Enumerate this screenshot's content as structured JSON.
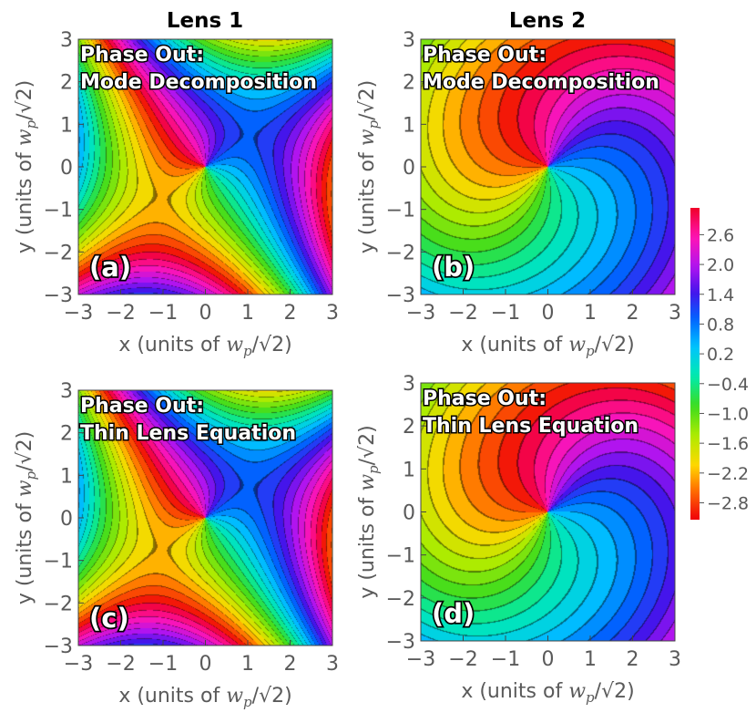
{
  "chart_data": {
    "type": "heatmap",
    "columns": [
      "Lens 1",
      "Lens 2"
    ],
    "colorbar": {
      "range": [
        -3.14,
        3.14
      ],
      "ticks": [
        "2.6",
        "2.0",
        "1.4",
        "0.8",
        "0.2",
        "−0.4",
        "−1.0",
        "−1.6",
        "−2.2",
        "−2.8"
      ],
      "tick_values": [
        2.6,
        2.0,
        1.4,
        0.8,
        0.2,
        -0.4,
        -1.0,
        -1.6,
        -2.2,
        -2.8
      ]
    },
    "panels": [
      {
        "id": "a",
        "label": "(a)",
        "lens": 1,
        "title_line1": "Phase Out:",
        "title_line2": "Mode Decomposition",
        "xlabel": "x (units of",
        "ylabel": "y (units of",
        "unit_sym": "w",
        "unit_sub": "p",
        "unit_rest": "/√2)",
        "xlim": [
          -3,
          3
        ],
        "ylim": [
          -3,
          3
        ],
        "xticks": [
          "−3",
          "−2",
          "−1",
          "0",
          "1",
          "2",
          "3"
        ],
        "yticks": [
          "3",
          "2",
          "1",
          "0",
          "−1",
          "−2",
          "−3"
        ]
      },
      {
        "id": "b",
        "label": "(b)",
        "lens": 2,
        "title_line1": "Phase Out:",
        "title_line2": "Mode Decomposition",
        "xlabel": "x (units of",
        "ylabel": "y (units of",
        "unit_sym": "w",
        "unit_sub": "p",
        "unit_rest": "/√2)",
        "xlim": [
          -3,
          3
        ],
        "ylim": [
          -3,
          3
        ],
        "xticks": [
          "−3",
          "−2",
          "−1",
          "0",
          "1",
          "2",
          "3"
        ],
        "yticks": [
          "3",
          "2",
          "1",
          "0",
          "−1",
          "−2",
          "−3"
        ]
      },
      {
        "id": "c",
        "label": "(c)",
        "lens": 1,
        "title_line1": "Phase Out:",
        "title_line2": "Thin Lens Equation",
        "xlabel": "x (units of",
        "ylabel": "y (units of",
        "unit_sym": "w",
        "unit_sub": "p",
        "unit_rest": "/√2)",
        "xlim": [
          -3,
          3
        ],
        "ylim": [
          -3,
          3
        ],
        "xticks": [
          "−3",
          "−2",
          "−1",
          "0",
          "1",
          "2",
          "3"
        ],
        "yticks": [
          "3",
          "2",
          "1",
          "0",
          "−1",
          "−2",
          "−3"
        ]
      },
      {
        "id": "d",
        "label": "(d)",
        "lens": 2,
        "title_line1": "Phase Out:",
        "title_line2": "Thin Lens Equation",
        "xlabel": "x (units of",
        "ylabel": "y (units of",
        "unit_sym": "w",
        "unit_sub": "p",
        "unit_rest": "/√2)",
        "xlim": [
          -3,
          3
        ],
        "ylim": [
          -3,
          3
        ],
        "xticks": [
          "−3",
          "−2",
          "−1",
          "0",
          "1",
          "2",
          "3"
        ],
        "yticks": [
          "3",
          "2",
          "1",
          "0",
          "−1",
          "−2",
          "−3"
        ]
      }
    ]
  }
}
